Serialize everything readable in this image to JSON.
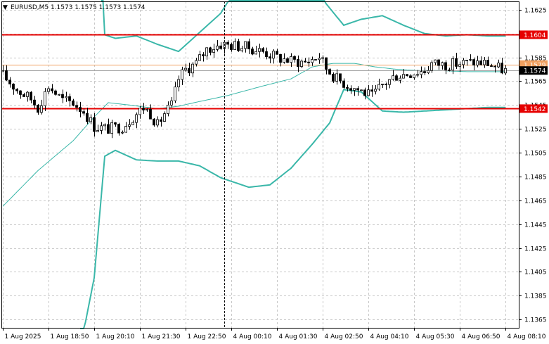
{
  "header": {
    "arrow": "▼",
    "title": "EURUSD,M5  1.1573 1.1575 1.1573 1.1574"
  },
  "chart_data": {
    "type": "candlestick",
    "symbol": "EURUSD",
    "timeframe": "M5",
    "ylim": [
      1.1358,
      1.1632
    ],
    "bar_count": 144,
    "y_ticks": [
      "1.1625",
      "1.1605",
      "1.1585",
      "1.1565",
      "1.1545",
      "1.1525",
      "1.1505",
      "1.1485",
      "1.1465",
      "1.1445",
      "1.1425",
      "1.1405",
      "1.1385",
      "1.1365"
    ],
    "x_ticks": [
      {
        "label": "1 Aug 2025",
        "bar": 0
      },
      {
        "label": "1 Aug 18:50",
        "bar": 13
      },
      {
        "label": "1 Aug 20:10",
        "bar": 26
      },
      {
        "label": "1 Aug 21:30",
        "bar": 39
      },
      {
        "label": "1 Aug 22:50",
        "bar": 52
      },
      {
        "label": "4 Aug 00:10",
        "bar": 65
      },
      {
        "label": "4 Aug 01:30",
        "bar": 78
      },
      {
        "label": "4 Aug 02:50",
        "bar": 91
      },
      {
        "label": "4 Aug 04:10",
        "bar": 104
      },
      {
        "label": "4 Aug 05:30",
        "bar": 117
      },
      {
        "label": "4 Aug 06:50",
        "bar": 130
      },
      {
        "label": "4 Aug 08:10",
        "bar": 143
      }
    ],
    "period_separator_bar": 63,
    "close_anchors": [
      [
        0,
        1.157
      ],
      [
        4,
        1.1558
      ],
      [
        8,
        1.155
      ],
      [
        10,
        1.1543
      ],
      [
        13,
        1.1561
      ],
      [
        17,
        1.1549
      ],
      [
        20,
        1.1547
      ],
      [
        23,
        1.154
      ],
      [
        26,
        1.1527
      ],
      [
        30,
        1.1525
      ],
      [
        34,
        1.1527
      ],
      [
        37,
        1.1535
      ],
      [
        40,
        1.1543
      ],
      [
        42,
        1.1538
      ],
      [
        44,
        1.1528
      ],
      [
        46,
        1.1538
      ],
      [
        48,
        1.1545
      ],
      [
        50,
        1.1567
      ],
      [
        52,
        1.1575
      ],
      [
        55,
        1.158
      ],
      [
        58,
        1.1592
      ],
      [
        62,
        1.1596
      ],
      [
        66,
        1.1595
      ],
      [
        70,
        1.1593
      ],
      [
        74,
        1.159
      ],
      [
        78,
        1.1585
      ],
      [
        82,
        1.1582
      ],
      [
        86,
        1.1581
      ],
      [
        90,
        1.1586
      ],
      [
        92,
        1.1576
      ],
      [
        95,
        1.1567
      ],
      [
        98,
        1.1562
      ],
      [
        102,
        1.1557
      ],
      [
        105,
        1.1552
      ],
      [
        108,
        1.1562
      ],
      [
        112,
        1.157
      ],
      [
        116,
        1.1572
      ],
      [
        120,
        1.1574
      ],
      [
        122,
        1.158
      ],
      [
        126,
        1.1579
      ],
      [
        130,
        1.158
      ],
      [
        134,
        1.1581
      ],
      [
        138,
        1.158
      ],
      [
        141,
        1.1576
      ],
      [
        143,
        1.1574
      ]
    ],
    "bollinger_upper": [
      [
        28,
        1.18
      ],
      [
        29,
        1.1604
      ],
      [
        32,
        1.1601
      ],
      [
        38,
        1.1603
      ],
      [
        44,
        1.1596
      ],
      [
        50,
        1.159
      ],
      [
        56,
        1.1606
      ],
      [
        62,
        1.1622
      ],
      [
        70,
        1.166
      ],
      [
        88,
        1.166
      ],
      [
        92,
        1.163
      ],
      [
        97,
        1.1612
      ],
      [
        102,
        1.1617
      ],
      [
        108,
        1.162
      ],
      [
        114,
        1.1612
      ],
      [
        120,
        1.1605
      ],
      [
        126,
        1.1603
      ],
      [
        132,
        1.1604
      ],
      [
        138,
        1.1603
      ],
      [
        143,
        1.1603
      ]
    ],
    "bollinger_middle": [
      [
        0,
        1.146
      ],
      [
        10,
        1.149
      ],
      [
        20,
        1.1515
      ],
      [
        26,
        1.1535
      ],
      [
        30,
        1.1547
      ],
      [
        36,
        1.1545
      ],
      [
        44,
        1.1542
      ],
      [
        50,
        1.1544
      ],
      [
        56,
        1.1548
      ],
      [
        64,
        1.1553
      ],
      [
        74,
        1.1561
      ],
      [
        82,
        1.1567
      ],
      [
        88,
        1.1577
      ],
      [
        94,
        1.158
      ],
      [
        100,
        1.158
      ],
      [
        106,
        1.1577
      ],
      [
        112,
        1.1575
      ],
      [
        118,
        1.1574
      ],
      [
        124,
        1.1574
      ],
      [
        132,
        1.1573
      ],
      [
        143,
        1.1573
      ]
    ],
    "bollinger_lower": [
      [
        22,
        1.134
      ],
      [
        26,
        1.14
      ],
      [
        29,
        1.1502
      ],
      [
        32,
        1.1507
      ],
      [
        38,
        1.1499
      ],
      [
        44,
        1.1498
      ],
      [
        50,
        1.1498
      ],
      [
        56,
        1.1494
      ],
      [
        62,
        1.1484
      ],
      [
        70,
        1.1476
      ],
      [
        76,
        1.1478
      ],
      [
        82,
        1.1492
      ],
      [
        88,
        1.1512
      ],
      [
        93,
        1.153
      ],
      [
        97,
        1.1558
      ],
      [
        102,
        1.1556
      ],
      [
        108,
        1.154
      ],
      [
        114,
        1.1539
      ],
      [
        120,
        1.154
      ],
      [
        126,
        1.1541
      ],
      [
        132,
        1.1542
      ],
      [
        138,
        1.1543
      ],
      [
        143,
        1.1543
      ]
    ],
    "levels": [
      {
        "name": "resistance",
        "price": 1.1604,
        "label": "1.1604",
        "color": "#e60000"
      },
      {
        "name": "support",
        "price": 1.1542,
        "label": "1.1542",
        "color": "#e60000"
      },
      {
        "name": "reference",
        "price": 1.1579,
        "label": "1.1579",
        "color": "#f0a060"
      }
    ],
    "current_price": {
      "price": 1.1574,
      "label": "1.1574"
    }
  },
  "colors": {
    "background": "#ffffff",
    "candle_bull": "#ffffff",
    "candle_bear": "#000000",
    "candle_outline": "#000000",
    "band_outer": "#3ab7a9",
    "band_middle": "#3ab7a9",
    "level_line": "#e60000",
    "reference_line": "#f0a060",
    "price_badge": "#000000",
    "current_line": "#a0a0a0"
  }
}
